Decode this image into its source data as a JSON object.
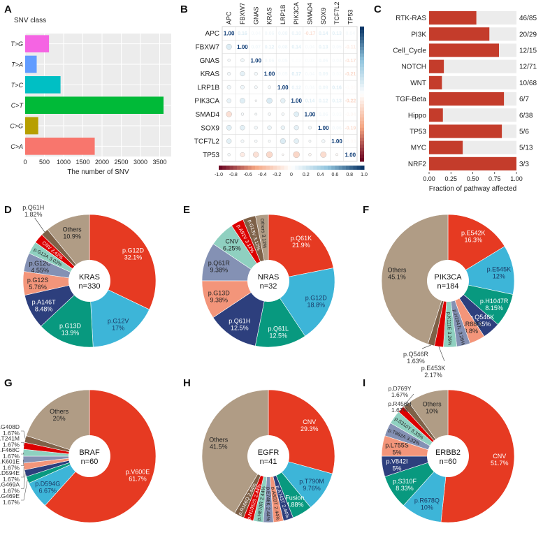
{
  "panels": {
    "A": "A",
    "B": "B",
    "C": "C",
    "D": "D",
    "E": "E",
    "F": "F",
    "G": "G",
    "H": "H",
    "I": "I"
  },
  "colors": {
    "red": "#e63a22",
    "sky": "#3db5d8",
    "teal": "#08997f",
    "navy": "#2d3f7d",
    "salmon": "#f3957a",
    "lavender": "#8491b4",
    "mint": "#8fd0c0",
    "crimson": "#dc0000",
    "brown": "#7e6148",
    "tan": "#b09c85",
    "bar_red": "#c43c2b",
    "bar_bg": "#ececec"
  },
  "chart_data": [
    {
      "id": "A",
      "type": "bar",
      "orientation": "horizontal",
      "title": "SNV class",
      "xlabel": "The number of SNV",
      "categories": [
        "T>G",
        "T>A",
        "T>C",
        "C>T",
        "C>G",
        "C>A"
      ],
      "values": [
        620,
        300,
        920,
        3600,
        340,
        1810
      ],
      "colors": [
        "#f564e3",
        "#619cff",
        "#00bfc4",
        "#00ba38",
        "#b79f00",
        "#f8766d"
      ],
      "xlim": [
        0,
        3800
      ],
      "xticks": [
        "0",
        "500",
        "1000",
        "1500",
        "2000",
        "2500",
        "3000",
        "3500"
      ],
      "xtick_values": [
        0,
        500,
        1000,
        1500,
        2000,
        2500,
        3000,
        3500
      ],
      "grid": true
    },
    {
      "id": "B",
      "type": "heatmap",
      "genes": [
        "APC",
        "FBXW7",
        "GNAS",
        "KRAS",
        "LRP1B",
        "PIK3CA",
        "SMAD4",
        "SOX9",
        "TCF7L2",
        "TP53"
      ],
      "matrix": [
        [
          1.0,
          0.16,
          0.04,
          0.06,
          0.08,
          0.1,
          -0.17,
          0.14,
          0.13,
          0.04
        ],
        [
          0.16,
          1.0,
          0.07,
          0.12,
          0.08,
          0.14,
          0.04,
          0.13,
          0.05,
          -0.11
        ],
        [
          0.04,
          0.07,
          1.0,
          0.06,
          0.05,
          0.02,
          0.03,
          0.06,
          0.04,
          -0.17
        ],
        [
          0.06,
          0.12,
          0.06,
          1.0,
          0.05,
          0.17,
          0.04,
          0.09,
          0.03,
          -0.21
        ],
        [
          0.08,
          0.08,
          0.05,
          0.05,
          1.0,
          0.12,
          0.04,
          0.09,
          0.16,
          -0.02
        ],
        [
          0.1,
          0.14,
          0.02,
          0.17,
          0.12,
          1.0,
          0.14,
          0.12,
          0.13,
          -0.22
        ],
        [
          -0.17,
          0.04,
          0.03,
          0.04,
          0.04,
          0.14,
          1.0,
          0.06,
          0.03,
          -0.04
        ],
        [
          0.14,
          0.13,
          0.06,
          0.09,
          0.09,
          0.12,
          0.06,
          1.0,
          0.06,
          -0.19
        ],
        [
          0.13,
          0.05,
          0.04,
          0.03,
          0.16,
          0.13,
          0.03,
          0.06,
          1.0,
          -0.03
        ],
        [
          0.04,
          -0.11,
          -0.17,
          -0.21,
          -0.02,
          -0.22,
          -0.04,
          -0.19,
          -0.03,
          1.0
        ]
      ],
      "colorbar_ticks": [
        "-1.0",
        "-0.8",
        "-0.6",
        "-0.4",
        "-0.2",
        "0",
        "0.2",
        "0.4",
        "0.6",
        "0.8",
        "1.0"
      ],
      "colorbar_values": [
        -1.0,
        -0.8,
        -0.6,
        -0.4,
        -0.2,
        0,
        0.2,
        0.4,
        0.6,
        0.8,
        1.0
      ],
      "range": [
        -1,
        1
      ]
    },
    {
      "id": "C",
      "type": "bar",
      "orientation": "horizontal",
      "xlabel": "Fraction of pathway affected",
      "categories": [
        "RTK-RAS",
        "PI3K",
        "Cell_Cycle",
        "NOTCH",
        "WNT",
        "TGF-Beta",
        "Hippo",
        "TP53",
        "MYC",
        "NRF2"
      ],
      "values": [
        0.541,
        0.69,
        0.8,
        0.169,
        0.147,
        0.857,
        0.158,
        0.833,
        0.385,
        1.0
      ],
      "labels": [
        "46/85",
        "20/29",
        "12/15",
        "12/71",
        "10/68",
        "6/7",
        "6/38",
        "5/6",
        "5/13",
        "3/3"
      ],
      "xlim": [
        0,
        1
      ],
      "xticks": [
        "0.00",
        "0.25",
        "0.50",
        "0.75",
        "1.00"
      ],
      "xtick_values": [
        0,
        0.25,
        0.5,
        0.75,
        1.0
      ]
    },
    {
      "id": "D",
      "type": "pie",
      "gene": "KRAS",
      "n": "n=330",
      "slices": [
        {
          "label": "p.G12D",
          "pct": "32.1%",
          "value": 32.1,
          "color": "#e63a22",
          "lc": "#ffffff"
        },
        {
          "label": "p.G12V",
          "pct": "17%",
          "value": 17.0,
          "color": "#3db5d8",
          "lc": "#1a3a66"
        },
        {
          "label": "p.G13D",
          "pct": "13.9%",
          "value": 13.9,
          "color": "#08997f",
          "lc": "#ffffff"
        },
        {
          "label": "p.A146T",
          "pct": "8.48%",
          "value": 8.48,
          "color": "#2d3f7d",
          "lc": "#ffffff"
        },
        {
          "label": "p.G12S",
          "pct": "5.76%",
          "value": 5.76,
          "color": "#f3957a",
          "lc": "#222222"
        },
        {
          "label": "p.G12C",
          "pct": "4.55%",
          "value": 4.55,
          "color": "#8491b4",
          "lc": "#222222"
        },
        {
          "label": "p.G12A",
          "pct": "3.03%",
          "value": 3.03,
          "color": "#8fd0c0",
          "lc": "#222222",
          "rot": true
        },
        {
          "label": "CNV",
          "pct": "2.42%",
          "value": 2.42,
          "color": "#dc0000",
          "lc": "#ffffff",
          "rot": true
        },
        {
          "label": "p.Q61H",
          "pct": "1.82%",
          "value": 1.82,
          "color": "#7e6148",
          "lc": "#222222",
          "outside": true
        },
        {
          "label": "Others",
          "pct": "10.9%",
          "value": 10.9,
          "color": "#b09c85",
          "lc": "#222222"
        }
      ]
    },
    {
      "id": "E",
      "type": "pie",
      "gene": "NRAS",
      "n": "n=32",
      "slices": [
        {
          "label": "p.Q61K",
          "pct": "21.9%",
          "value": 21.9,
          "color": "#e63a22",
          "lc": "#ffffff"
        },
        {
          "label": "p.G12D",
          "pct": "18.8%",
          "value": 18.8,
          "color": "#3db5d8",
          "lc": "#1a3a66"
        },
        {
          "label": "p.Q61L",
          "pct": "12.5%",
          "value": 12.5,
          "color": "#08997f",
          "lc": "#ffffff"
        },
        {
          "label": "p.Q61H",
          "pct": "12.5%",
          "value": 12.5,
          "color": "#2d3f7d",
          "lc": "#ffffff"
        },
        {
          "label": "p.G13D",
          "pct": "9.38%",
          "value": 9.38,
          "color": "#f3957a",
          "lc": "#222222"
        },
        {
          "label": "p.Q61R",
          "pct": "9.38%",
          "value": 9.38,
          "color": "#8491b4",
          "lc": "#222222"
        },
        {
          "label": "CNV",
          "pct": "6.25%",
          "value": 6.25,
          "color": "#8fd0c0",
          "lc": "#222222"
        },
        {
          "label": "p.A91V",
          "pct": "3.12%",
          "value": 3.12,
          "color": "#dc0000",
          "lc": "#ffffff",
          "rot": true
        },
        {
          "label": "p.G13V",
          "pct": "3.12%",
          "value": 3.12,
          "color": "#7e6148",
          "lc": "#ffffff",
          "rot": true
        },
        {
          "label": "Others",
          "pct": "3.12%",
          "value": 3.12,
          "color": "#b09c85",
          "lc": "#222222",
          "rot": true
        }
      ]
    },
    {
      "id": "F",
      "type": "pie",
      "gene": "PIK3CA",
      "n": "n=184",
      "slices": [
        {
          "label": "p.E542K",
          "pct": "16.3%",
          "value": 16.3,
          "color": "#e63a22",
          "lc": "#ffffff"
        },
        {
          "label": "p.E545K",
          "pct": "12%",
          "value": 12.0,
          "color": "#3db5d8",
          "lc": "#1a3a66"
        },
        {
          "label": "p.H1047R",
          "pct": "8.15%",
          "value": 8.15,
          "color": "#08997f",
          "lc": "#ffffff"
        },
        {
          "label": "p.Q546K",
          "pct": "4.35%",
          "value": 4.35,
          "color": "#2d3f7d",
          "lc": "#ffffff"
        },
        {
          "label": "p.R88Q",
          "pct": "3.8%",
          "value": 3.8,
          "color": "#f3957a",
          "lc": "#222222"
        },
        {
          "label": "p.H1047L",
          "pct": "3.26%",
          "value": 3.26,
          "color": "#8491b4",
          "lc": "#222222",
          "rot": true
        },
        {
          "label": "p.K111E",
          "pct": "3.26%",
          "value": 3.26,
          "color": "#8fd0c0",
          "lc": "#222222",
          "rot": true
        },
        {
          "label": "p.E453K",
          "pct": "2.17%",
          "value": 2.17,
          "color": "#dc0000",
          "lc": "#222222",
          "outside": true
        },
        {
          "label": "p.Q546R",
          "pct": "1.63%",
          "value": 1.63,
          "color": "#7e6148",
          "lc": "#222222",
          "outside": true
        },
        {
          "label": "Others",
          "pct": "45.1%",
          "value": 45.1,
          "color": "#b09c85",
          "lc": "#222222"
        }
      ]
    },
    {
      "id": "G",
      "type": "pie",
      "gene": "BRAF",
      "n": "n=60",
      "slices": [
        {
          "label": "p.V600E",
          "pct": "61.7%",
          "value": 61.7,
          "color": "#e63a22",
          "lc": "#ffffff"
        },
        {
          "label": "p.D594G",
          "pct": "6.67%",
          "value": 6.67,
          "color": "#3db5d8",
          "lc": "#1a3a66"
        },
        {
          "label": "p.G469E",
          "pct": "1.67%",
          "value": 1.67,
          "color": "#08997f",
          "lc": "#222222",
          "outside": true
        },
        {
          "label": "p.G469A",
          "pct": "1.67%",
          "value": 1.67,
          "color": "#2d3f7d",
          "lc": "#222222",
          "outside": true
        },
        {
          "label": "p.D594E",
          "pct": "1.67%",
          "value": 1.67,
          "color": "#f3957a",
          "lc": "#222222",
          "outside": true
        },
        {
          "label": "p.K601E",
          "pct": "1.67%",
          "value": 1.67,
          "color": "#8491b4",
          "lc": "#222222",
          "outside": true
        },
        {
          "label": "p.F468C",
          "pct": "1.67%",
          "value": 1.67,
          "color": "#8fd0c0",
          "lc": "#222222",
          "outside": true
        },
        {
          "label": "p.T241M",
          "pct": "1.67%",
          "value": 1.67,
          "color": "#dc0000",
          "lc": "#222222",
          "outside": true
        },
        {
          "label": "p.G408D",
          "pct": "1.67%",
          "value": 1.67,
          "color": "#7e6148",
          "lc": "#222222",
          "outside": true
        },
        {
          "label": "Others",
          "pct": "20%",
          "value": 20.0,
          "color": "#b09c85",
          "lc": "#222222"
        }
      ]
    },
    {
      "id": "H",
      "type": "pie",
      "gene": "EGFR",
      "n": "n=41",
      "slices": [
        {
          "label": "CNV",
          "pct": "29.3%",
          "value": 29.3,
          "color": "#e63a22",
          "lc": "#ffffff"
        },
        {
          "label": "p.T790M",
          "pct": "9.76%",
          "value": 9.76,
          "color": "#3db5d8",
          "lc": "#1a3a66"
        },
        {
          "label": "Fusion",
          "pct": "4.88%",
          "value": 4.88,
          "color": "#08997f",
          "lc": "#ffffff"
        },
        {
          "label": "p.A743T",
          "pct": "2.44%",
          "value": 2.44,
          "color": "#2d3f7d",
          "lc": "#ffffff",
          "rot": true
        },
        {
          "label": "p.A859T",
          "pct": "2.44%",
          "value": 2.44,
          "color": "#f3957a",
          "lc": "#222222",
          "rot": true
        },
        {
          "label": "p.E746K",
          "pct": "2.44%",
          "value": 2.44,
          "color": "#8491b4",
          "lc": "#222222",
          "rot": true
        },
        {
          "label": "p.H870R",
          "pct": "2.44%",
          "value": 2.44,
          "color": "#8fd0c0",
          "lc": "#222222",
          "rot": true
        },
        {
          "label": "p.N1052S",
          "pct": "2.44%",
          "value": 2.44,
          "color": "#dc0000",
          "lc": "#ffffff",
          "rot": true
        },
        {
          "label": "p.R166Q",
          "pct": "2.44%",
          "value": 2.44,
          "color": "#7e6148",
          "lc": "#ffffff",
          "rot": true
        },
        {
          "label": "Others",
          "pct": "41.5%",
          "value": 41.5,
          "color": "#b09c85",
          "lc": "#222222"
        }
      ]
    },
    {
      "id": "I",
      "type": "pie",
      "gene": "ERBB2",
      "n": "n=60",
      "slices": [
        {
          "label": "CNV",
          "pct": "51.7%",
          "value": 51.7,
          "color": "#e63a22",
          "lc": "#ffffff"
        },
        {
          "label": "p.R678Q",
          "pct": "10%",
          "value": 10.0,
          "color": "#3db5d8",
          "lc": "#1a3a66"
        },
        {
          "label": "p.S310F",
          "pct": "8.33%",
          "value": 8.33,
          "color": "#08997f",
          "lc": "#ffffff"
        },
        {
          "label": "p.V842I",
          "pct": "5%",
          "value": 5.0,
          "color": "#2d3f7d",
          "lc": "#ffffff"
        },
        {
          "label": "p.L755S",
          "pct": "5%",
          "value": 5.0,
          "color": "#f3957a",
          "lc": "#222222"
        },
        {
          "label": "p.T862A",
          "pct": "3.33%",
          "value": 3.33,
          "color": "#8491b4",
          "lc": "#222222",
          "rot": true
        },
        {
          "label": "p.S310Y",
          "pct": "3.33%",
          "value": 3.33,
          "color": "#8fd0c0",
          "lc": "#222222",
          "rot": true
        },
        {
          "label": "p.D769Y",
          "pct": "1.67%",
          "value": 1.67,
          "color": "#dc0000",
          "lc": "#222222",
          "outside": true
        },
        {
          "label": "p.R456H",
          "pct": "1.67%",
          "value": 1.67,
          "color": "#7e6148",
          "lc": "#222222",
          "outside": true
        },
        {
          "label": "Others",
          "pct": "10%",
          "value": 10.0,
          "color": "#b09c85",
          "lc": "#222222"
        }
      ]
    }
  ]
}
